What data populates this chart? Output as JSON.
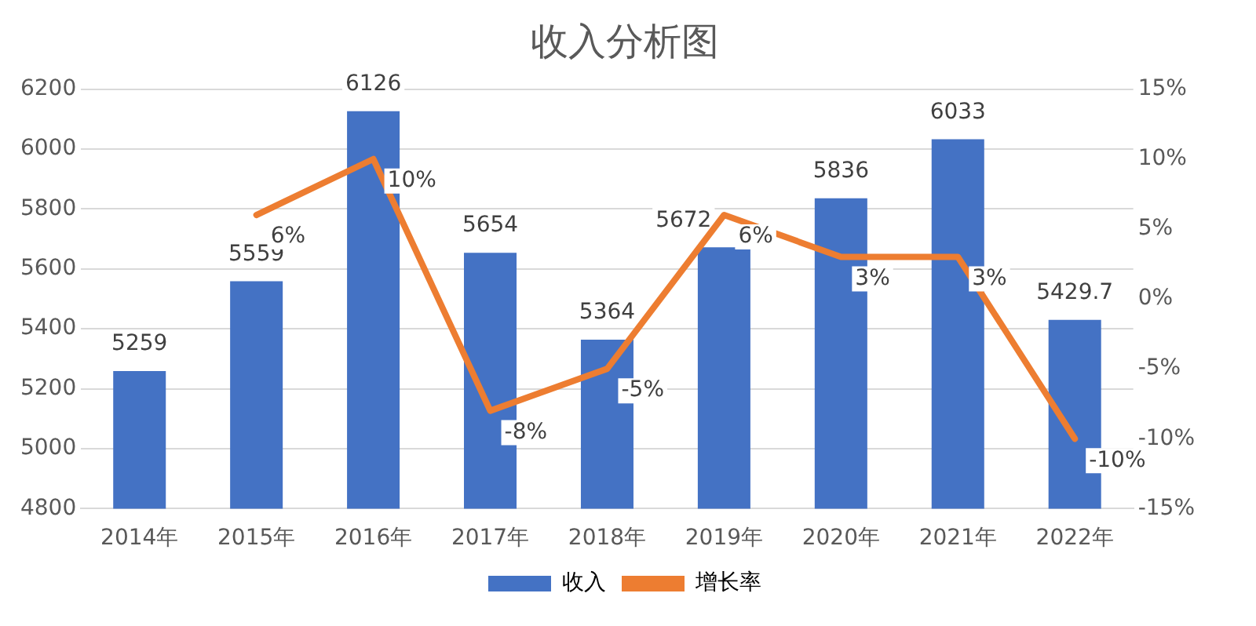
{
  "chart_data": {
    "type": "bar",
    "title": "收入分析图",
    "categories": [
      "2014年",
      "2015年",
      "2016年",
      "2017年",
      "2018年",
      "2019年",
      "2020年",
      "2021年",
      "2022年"
    ],
    "series": [
      {
        "name": "收入",
        "color": "#4472c4",
        "values": [
          5259,
          5559,
          6126,
          5654,
          5364,
          5672,
          5836,
          6033,
          5429.7
        ],
        "value_labels": [
          "5259",
          "5559",
          "6126",
          "5654",
          "5364",
          "5672",
          "5836",
          "6033",
          "5429.7"
        ]
      },
      {
        "name": "增长率",
        "type": "line",
        "axis": "y2",
        "color": "#ed7d31",
        "values": [
          null,
          6,
          10,
          -8,
          -5,
          6,
          3,
          3,
          -10
        ],
        "value_labels": [
          null,
          "6%",
          "10%",
          "-8%",
          "-5%",
          "6%",
          "3%",
          "3%",
          "-10%"
        ]
      }
    ],
    "ylim": [
      4800,
      6200
    ],
    "yticks": [
      4800,
      5000,
      5200,
      5400,
      5600,
      5800,
      6000,
      6200
    ],
    "y2lim": [
      -15,
      15
    ],
    "y2ticks": [
      {
        "value": -15,
        "label": "-15%"
      },
      {
        "value": -10,
        "label": "-10%"
      },
      {
        "value": -5,
        "label": "-5%"
      },
      {
        "value": 0,
        "label": "0%"
      },
      {
        "value": 5,
        "label": "5%"
      },
      {
        "value": 10,
        "label": "10%"
      },
      {
        "value": 15,
        "label": "15%"
      }
    ],
    "grid": "y",
    "legend": "bottom",
    "marker": "none"
  }
}
